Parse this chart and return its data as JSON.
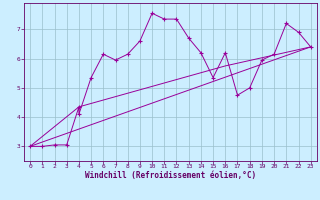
{
  "xlabel": "Windchill (Refroidissement éolien,°C)",
  "bg_color": "#cceeff",
  "line_color": "#990099",
  "xlim": [
    -0.5,
    23.5
  ],
  "ylim": [
    2.5,
    7.9
  ],
  "xticks": [
    0,
    1,
    2,
    3,
    4,
    5,
    6,
    7,
    8,
    9,
    10,
    11,
    12,
    13,
    14,
    15,
    16,
    17,
    18,
    19,
    20,
    21,
    22,
    23
  ],
  "yticks": [
    3,
    4,
    5,
    6,
    7
  ],
  "line1_x": [
    0,
    1,
    2,
    3,
    4,
    4,
    5,
    6,
    7,
    8,
    9,
    10,
    11,
    12,
    13,
    14,
    15,
    16,
    17,
    18,
    19,
    20,
    21,
    22,
    23
  ],
  "line1_y": [
    3.0,
    3.0,
    3.05,
    3.05,
    4.35,
    4.1,
    5.35,
    6.15,
    5.95,
    6.15,
    6.6,
    7.55,
    7.35,
    7.35,
    6.7,
    6.2,
    5.35,
    6.2,
    4.75,
    5.0,
    5.95,
    6.15,
    7.2,
    6.9,
    6.4
  ],
  "line2_x": [
    0,
    23
  ],
  "line2_y": [
    3.0,
    6.4
  ],
  "line3_x": [
    0,
    4,
    16,
    23
  ],
  "line3_y": [
    3.0,
    4.35,
    5.75,
    6.4
  ],
  "grid_color": "#9bbfcc",
  "font_color": "#660066",
  "font_family": "monospace",
  "xlabel_fontsize": 5.5,
  "tick_fontsize": 4.5,
  "linewidth": 0.7
}
